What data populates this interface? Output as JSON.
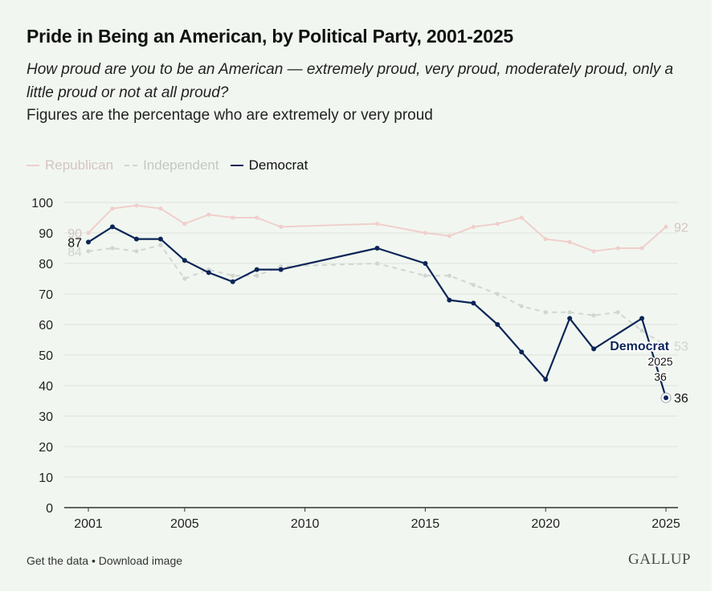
{
  "page": {
    "title": "Pride in Being an American, by Political Party, 2001-2025",
    "subtitle": "How proud are you to be an American — extremely proud, very proud, moderately proud, only a little proud or not at all proud?",
    "note": "Figures are the percentage who are extremely or very proud",
    "footer": {
      "get_data": "Get the data",
      "separator": "•",
      "download": "Download image"
    },
    "brand": "GALLUP",
    "colors": {
      "background": "#f1f7f0",
      "democrat": "#0c2558",
      "republican": "#f0cfcc",
      "independent": "#d2d6d3",
      "grid": "#dde3dc"
    }
  },
  "chart_data": {
    "type": "line",
    "title": "Pride in Being an American, by Political Party, 2001-2025",
    "xlabel": "",
    "ylabel": "",
    "xlim": [
      2001,
      2025
    ],
    "ylim": [
      0,
      100
    ],
    "x_ticks": [
      2001,
      2005,
      2010,
      2015,
      2020,
      2025
    ],
    "y_ticks": [
      0,
      10,
      20,
      30,
      40,
      50,
      60,
      70,
      80,
      90,
      100
    ],
    "legend": [
      "Republican",
      "Independent",
      "Democrat"
    ],
    "series": [
      {
        "name": "Republican",
        "style": "solid-faded",
        "x": [
          2001,
          2002,
          2003,
          2004,
          2005,
          2006,
          2007,
          2008,
          2009,
          2013,
          2015,
          2016,
          2017,
          2018,
          2019,
          2020,
          2021,
          2022,
          2023,
          2024,
          2025
        ],
        "y": [
          90,
          98,
          99,
          98,
          93,
          96,
          95,
          95,
          92,
          93,
          90,
          89,
          92,
          93,
          95,
          88,
          87,
          84,
          85,
          85,
          92
        ],
        "start_label": "90",
        "end_label": "92"
      },
      {
        "name": "Independent",
        "style": "dashed-faded",
        "x": [
          2001,
          2002,
          2003,
          2004,
          2005,
          2006,
          2007,
          2008,
          2009,
          2013,
          2015,
          2016,
          2017,
          2018,
          2019,
          2020,
          2021,
          2022,
          2023,
          2024,
          2025
        ],
        "y": [
          84,
          85,
          84,
          86,
          75,
          78,
          76,
          76,
          79,
          80,
          76,
          76,
          73,
          70,
          66,
          64,
          64,
          63,
          64,
          58,
          53
        ],
        "start_label": "84",
        "end_label": "53"
      },
      {
        "name": "Democrat",
        "style": "solid-highlight",
        "x": [
          2001,
          2002,
          2003,
          2004,
          2005,
          2006,
          2007,
          2008,
          2009,
          2013,
          2015,
          2016,
          2017,
          2018,
          2019,
          2020,
          2021,
          2022,
          2024,
          2025
        ],
        "y": [
          87,
          92,
          88,
          88,
          81,
          77,
          74,
          78,
          78,
          85,
          80,
          68,
          67,
          60,
          51,
          42,
          62,
          52,
          62,
          36
        ],
        "start_label": "87",
        "end_label": "36"
      }
    ],
    "annotation": {
      "series": "Democrat",
      "label": "Democrat",
      "year": "2025",
      "value": "36"
    }
  }
}
